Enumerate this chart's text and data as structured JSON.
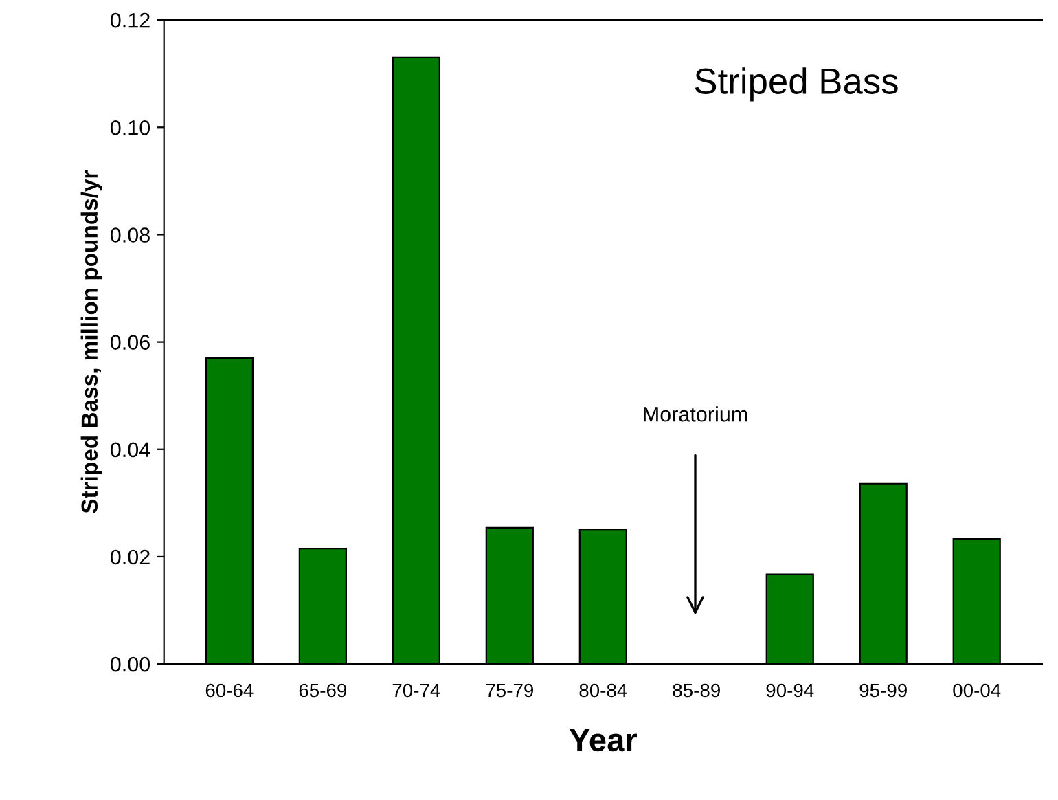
{
  "chart_data": {
    "type": "bar",
    "title": "Striped Bass",
    "xlabel": "Year",
    "ylabel": "Striped Bass, million pounds/yr",
    "categories": [
      "60-64",
      "65-69",
      "70-74",
      "75-79",
      "80-84",
      "85-89",
      "90-94",
      "95-99",
      "00-04"
    ],
    "values": [
      0.057,
      0.0215,
      0.113,
      0.0254,
      0.0251,
      null,
      0.0167,
      0.0336,
      0.0233
    ],
    "color": "#007a00",
    "ylim": [
      0,
      0.12
    ],
    "yticks": [
      {
        "value": 0,
        "label": "0.00"
      },
      {
        "value": 0.02,
        "label": "0.02"
      },
      {
        "value": 0.04,
        "label": "0.04"
      },
      {
        "value": 0.06,
        "label": "0.06"
      },
      {
        "value": 0.08,
        "label": "0.08"
      },
      {
        "value": 0.1,
        "label": "0.10"
      },
      {
        "value": 0.12,
        "label": "0.12"
      }
    ],
    "annotations": [
      "Moratorium"
    ],
    "grid": false,
    "legend": false
  }
}
